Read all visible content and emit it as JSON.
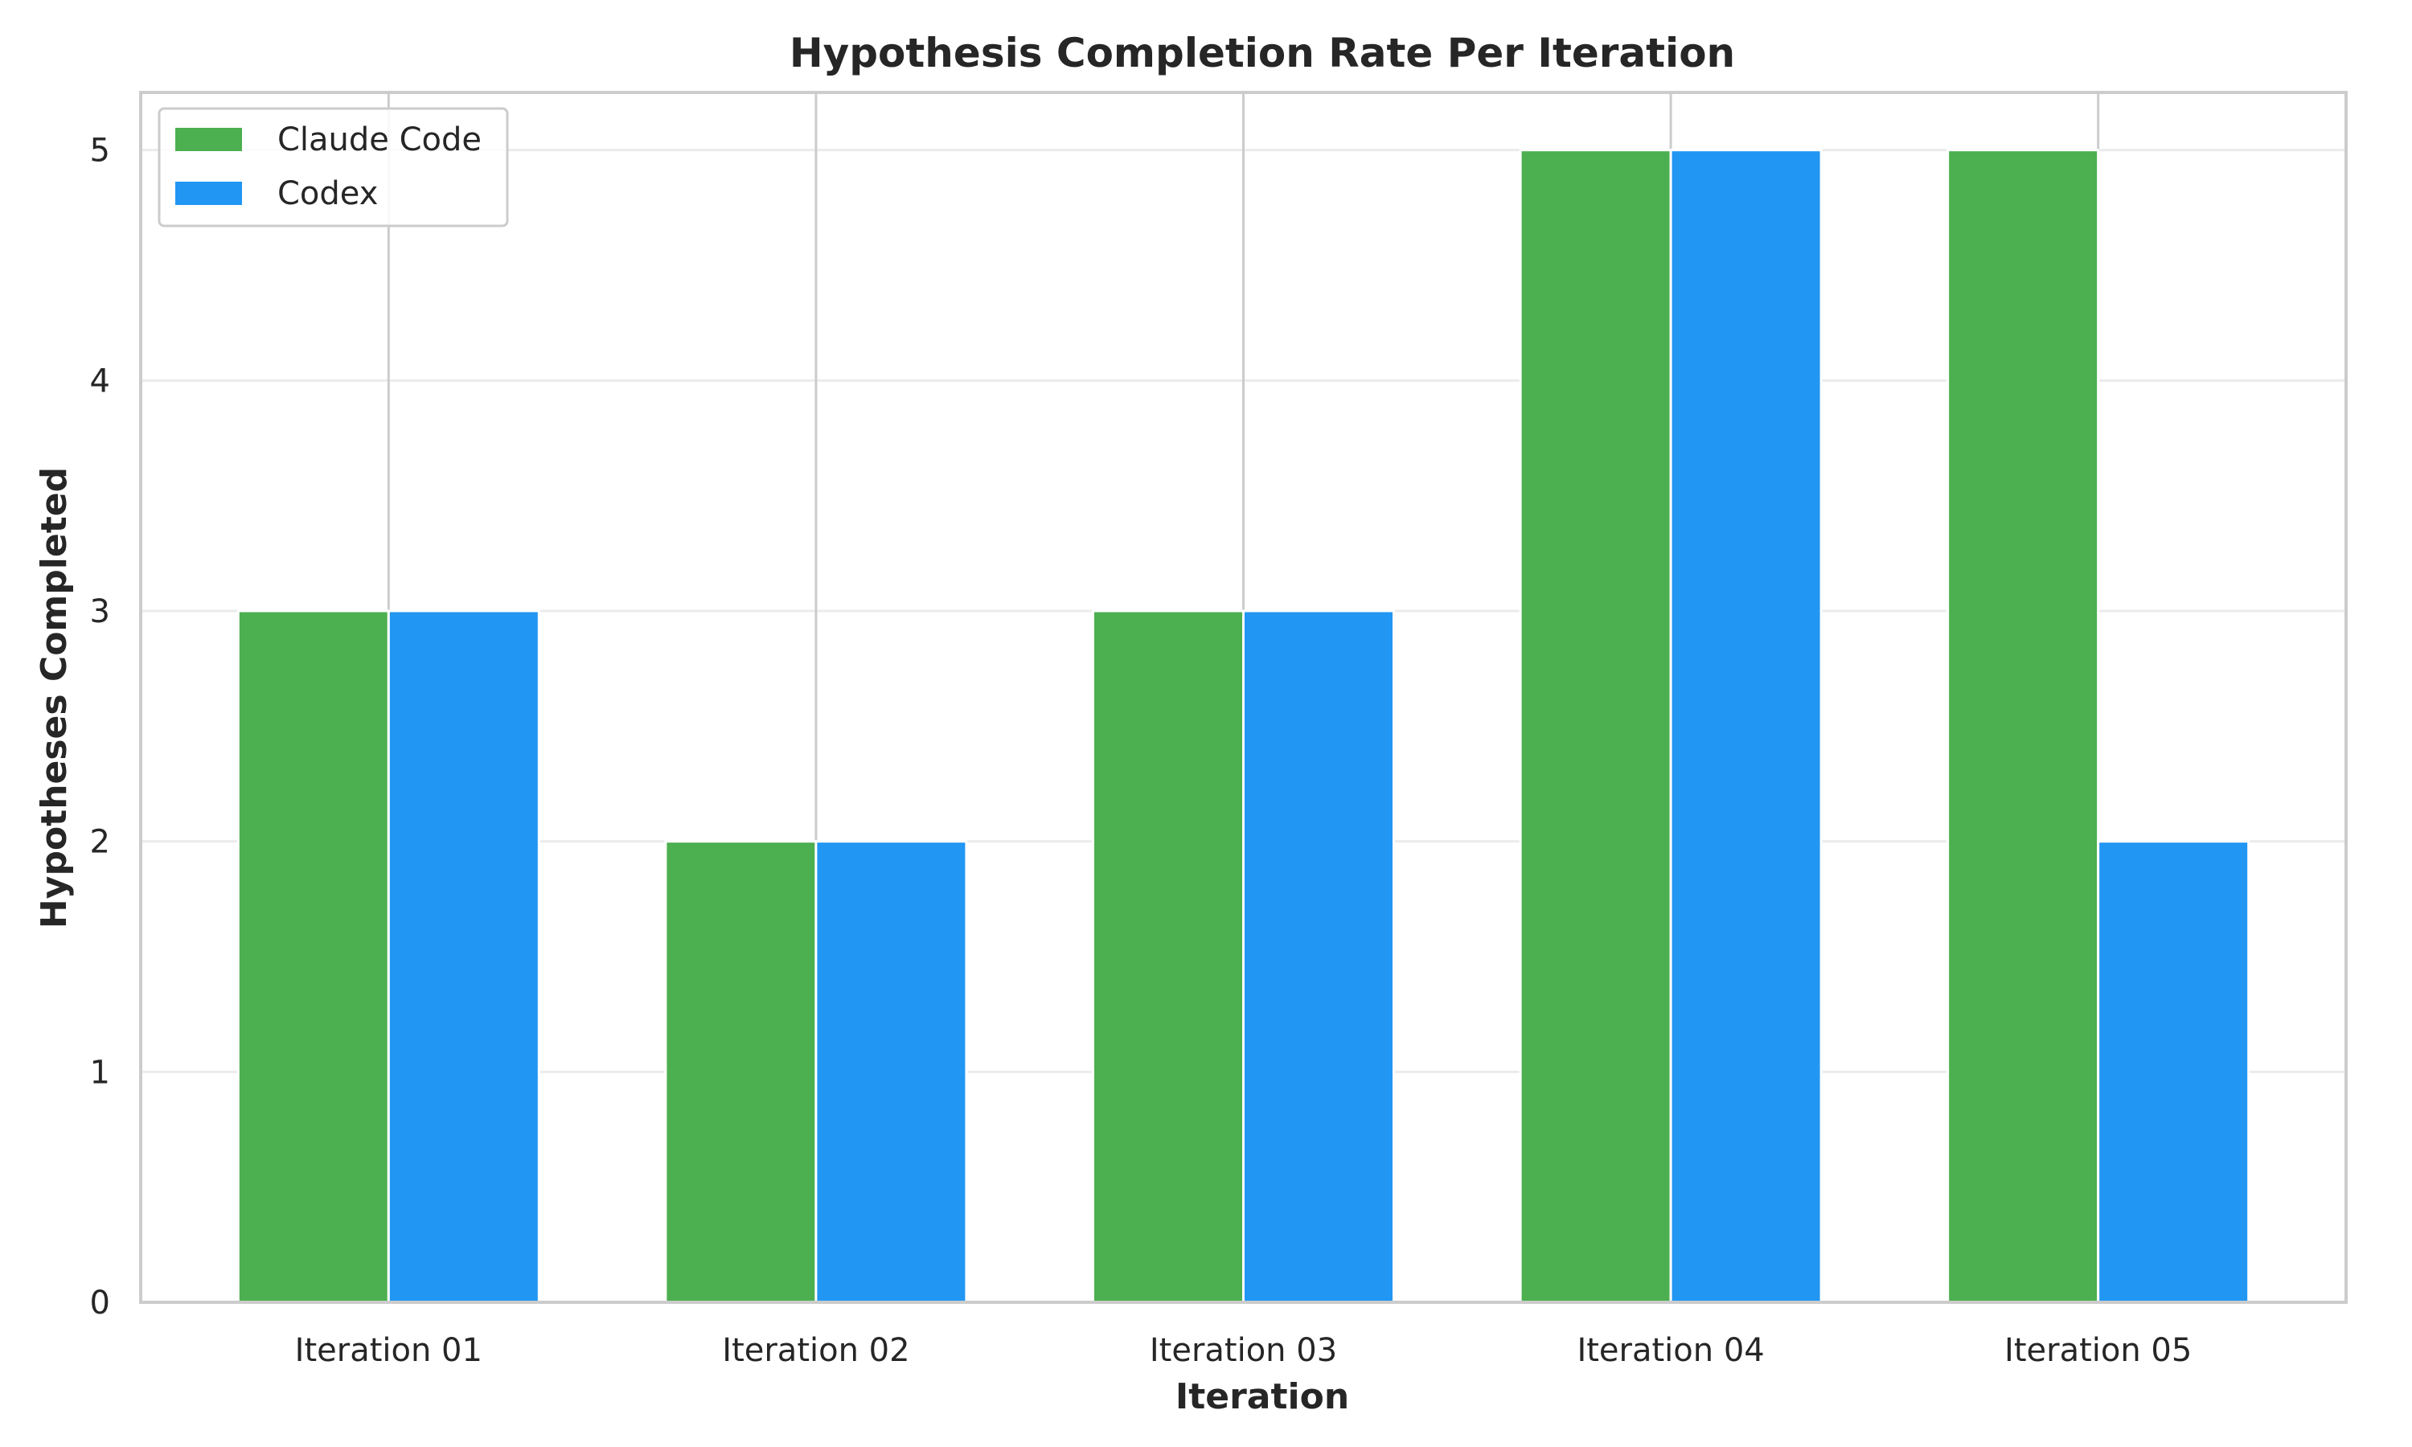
{
  "chart_data": {
    "type": "bar",
    "title": "Hypothesis Completion Rate Per Iteration",
    "xlabel": "Iteration",
    "ylabel": "Hypotheses Completed",
    "categories": [
      "Iteration 01",
      "Iteration 02",
      "Iteration 03",
      "Iteration 04",
      "Iteration 05"
    ],
    "series": [
      {
        "name": "Claude Code",
        "color": "#4caf50",
        "values": [
          3,
          2,
          3,
          5,
          5
        ]
      },
      {
        "name": "Codex",
        "color": "#2196f3",
        "values": [
          3,
          2,
          3,
          5,
          2
        ]
      }
    ],
    "ylim": [
      0,
      5.25
    ],
    "yticks": [
      0,
      1,
      2,
      3,
      4,
      5
    ],
    "grid": true,
    "legend_position": "top-left"
  }
}
